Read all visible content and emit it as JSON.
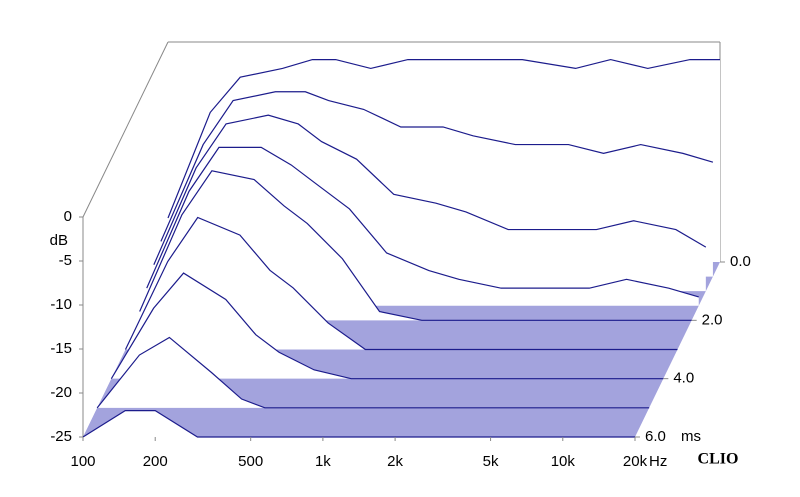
{
  "chart_data": {
    "type": "waterfall",
    "y_label": "dB",
    "x_unit": "Hz",
    "t_unit": "ms",
    "brand": "CLIO",
    "color": "#1c1c8c",
    "floor_color": "#a3a3dd",
    "ylim": [
      -25,
      0
    ],
    "yticks": [
      0,
      -5,
      -10,
      -15,
      -20,
      -25
    ],
    "xlim": [
      100,
      20000
    ],
    "log_x": true,
    "xticks": [
      {
        "value": 100,
        "label": "100"
      },
      {
        "value": 200,
        "label": "200"
      },
      {
        "value": 500,
        "label": "500"
      },
      {
        "value": 1000,
        "label": "1k"
      },
      {
        "value": 2000,
        "label": "2k"
      },
      {
        "value": 5000,
        "label": "5k"
      },
      {
        "value": 10000,
        "label": "10k"
      },
      {
        "value": 20000,
        "label": "20k"
      }
    ],
    "tlim": [
      0,
      6
    ],
    "tticks": [
      {
        "value": 0,
        "label": "0.0"
      },
      {
        "value": 2,
        "label": "2.0"
      },
      {
        "value": 4,
        "label": "4.0"
      },
      {
        "value": 6,
        "label": "6.0"
      }
    ],
    "x": [
      100,
      150,
      200,
      300,
      400,
      500,
      700,
      1000,
      1500,
      2000,
      3000,
      5000,
      7000,
      10000,
      15000,
      20000
    ],
    "slices": [
      {
        "time": 0,
        "values": [
          -20,
          -8,
          -4,
          -3,
          -2,
          -2,
          -3,
          -2,
          -2,
          -2,
          -2,
          -3,
          -2,
          -3,
          -2,
          -2
        ]
      },
      {
        "time": 0.5,
        "values": [
          -21,
          -10,
          -5,
          -4,
          -4,
          -5,
          -6,
          -8,
          -8,
          -9,
          -10,
          -10,
          -11,
          -10,
          -11,
          -12
        ]
      },
      {
        "time": 1,
        "values": [
          -22,
          -11,
          -6,
          -5,
          -6,
          -8,
          -10,
          -14,
          -15,
          -16,
          -18,
          -18,
          -18,
          -17,
          -18,
          -20
        ]
      },
      {
        "time": 1.5,
        "values": [
          -23,
          -12,
          -7,
          -7,
          -9,
          -11,
          -14,
          -19,
          -21,
          -22,
          -23,
          -23,
          -23,
          -22,
          -23,
          -24
        ]
      },
      {
        "time": 2,
        "values": [
          -24,
          -13,
          -8,
          -9,
          -12,
          -14,
          -18,
          -24,
          -25,
          -25,
          -25,
          -25,
          -25,
          -25,
          -25,
          -25
        ]
      },
      {
        "time": 3,
        "values": [
          -25,
          -15,
          -10,
          -12,
          -16,
          -18,
          -22,
          -25,
          -25,
          -25,
          -25,
          -25,
          -25,
          -25,
          -25,
          -25
        ]
      },
      {
        "time": 4,
        "values": [
          -25,
          -17,
          -13,
          -16,
          -20,
          -22,
          -24,
          -25,
          -25,
          -25,
          -25,
          -25,
          -25,
          -25,
          -25,
          -25
        ]
      },
      {
        "time": 5,
        "values": [
          -25,
          -19,
          -17,
          -21,
          -24,
          -25,
          -25,
          -25,
          -25,
          -25,
          -25,
          -25,
          -25,
          -25,
          -25,
          -25
        ]
      },
      {
        "time": 6,
        "values": [
          -25,
          -22,
          -22,
          -25,
          -25,
          -25,
          -25,
          -25,
          -25,
          -25,
          -25,
          -25,
          -25,
          -25,
          -25,
          -25
        ]
      }
    ]
  }
}
